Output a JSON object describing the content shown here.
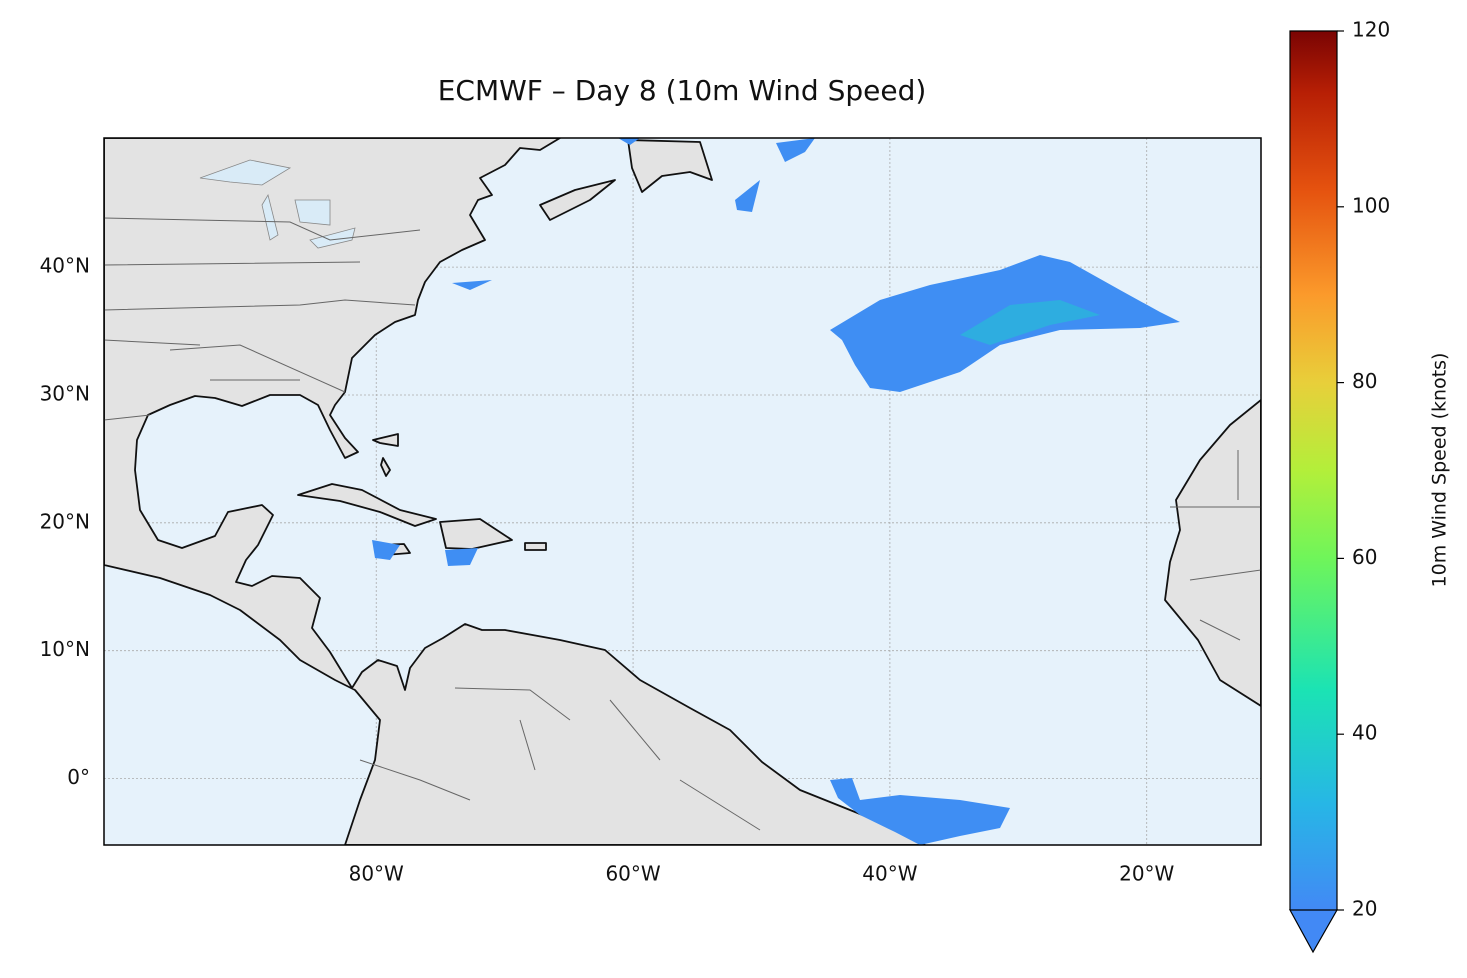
{
  "map": {
    "title": "ECMWF – Day 8 (10m Wind Speed)",
    "xlim": [
      -101.2,
      -11.1
    ],
    "ylim": [
      -5.2,
      50.1
    ],
    "xticks": [
      {
        "value": -80,
        "label": "80°W"
      },
      {
        "value": -60,
        "label": "60°W"
      },
      {
        "value": -40,
        "label": "40°W"
      },
      {
        "value": -20,
        "label": "20°W"
      }
    ],
    "yticks": [
      {
        "value": 0,
        "label": "0°"
      },
      {
        "value": 10,
        "label": "10°N"
      },
      {
        "value": 20,
        "label": "20°N"
      },
      {
        "value": 30,
        "label": "30°N"
      },
      {
        "value": 40,
        "label": "40°N"
      }
    ],
    "grid": true
  },
  "colorbar": {
    "label": "10m Wind Speed (knots)",
    "lim": [
      20,
      120
    ],
    "ticks": [
      20,
      40,
      60,
      80,
      100,
      120
    ],
    "extend": "min"
  }
}
